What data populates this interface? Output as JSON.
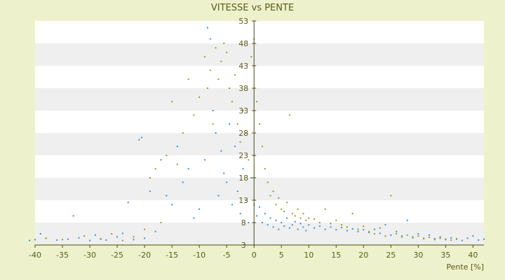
{
  "chart_data": {
    "type": "scatter",
    "title": "VITESSE vs PENTE",
    "xlabel": "Pente [%]",
    "ylabel": "",
    "xlim": [
      -40,
      42
    ],
    "ylim": [
      3,
      53
    ],
    "x_ticks": [
      -40,
      -35,
      -30,
      -25,
      -20,
      -15,
      -10,
      -5,
      0,
      5,
      10,
      15,
      20,
      25,
      30,
      35,
      40
    ],
    "y_tick_labels": [
      {
        "value": 53,
        "label": "53"
      },
      {
        "value": 48,
        "label": "48"
      },
      {
        "value": 43,
        "label": "43"
      },
      {
        "value": 38,
        "label": "38"
      },
      {
        "value": 33,
        "label": "33"
      },
      {
        "value": 28,
        "label": "28"
      },
      {
        "value": 23,
        "label": "23"
      },
      {
        "value": 18,
        "label": "18"
      },
      {
        "value": 13,
        "label": "13"
      },
      {
        "value": 8,
        "label": "8"
      },
      {
        "value": 3,
        "label": "3"
      }
    ],
    "grid": true,
    "legend": "none",
    "colors": {
      "background": "#eef2cc",
      "band_light": "#ffffff",
      "band_dark": "#efefef",
      "axis": "#4a4a12",
      "text": "#5a5a1a",
      "series_blue": "#3a8fd6",
      "series_olive": "#9a9a1c"
    },
    "series": [
      {
        "color": "#3a8fd6",
        "points": [
          [
            -41,
            4.0
          ],
          [
            -40,
            4.2
          ],
          [
            -39,
            5.5
          ],
          [
            -38,
            4.5
          ],
          [
            -36,
            4.1
          ],
          [
            -34,
            4.3
          ],
          [
            -33,
            9.5
          ],
          [
            -32,
            4.6
          ],
          [
            -30,
            4.0
          ],
          [
            -29,
            5.2
          ],
          [
            -28,
            4.4
          ],
          [
            -27,
            4.1
          ],
          [
            -25,
            4.8
          ],
          [
            -24,
            5.6
          ],
          [
            -23,
            12.5
          ],
          [
            -22,
            4.2
          ],
          [
            -21,
            26.5
          ],
          [
            -20.5,
            27.0
          ],
          [
            -20,
            4.5
          ],
          [
            -19,
            15.0
          ],
          [
            -18,
            6.0
          ],
          [
            -17,
            22.0
          ],
          [
            -16,
            14.0
          ],
          [
            -15,
            12.0
          ],
          [
            -14,
            25.0
          ],
          [
            -13,
            17.0
          ],
          [
            -12,
            20.0
          ],
          [
            -11,
            9.0
          ],
          [
            -10,
            11.0
          ],
          [
            -9,
            22.0
          ],
          [
            -8.5,
            51.5
          ],
          [
            -8,
            49.0
          ],
          [
            -7.5,
            33.0
          ],
          [
            -7,
            28.0
          ],
          [
            -6.5,
            14.0
          ],
          [
            -6,
            24.0
          ],
          [
            -5.5,
            19.0
          ],
          [
            -5,
            17.0
          ],
          [
            -4.5,
            30.0
          ],
          [
            -4,
            12.0
          ],
          [
            -3.5,
            25.0
          ],
          [
            -3,
            15.0
          ],
          [
            -2.5,
            10.0
          ],
          [
            -2,
            20.0
          ],
          [
            -1.5,
            13.0
          ],
          [
            -1,
            8.0
          ],
          [
            -0.5,
            18.0
          ],
          [
            0,
            12.0
          ],
          [
            0.5,
            9.5
          ],
          [
            1,
            11.5
          ],
          [
            1.5,
            8.0
          ],
          [
            2,
            10.0
          ],
          [
            2.5,
            7.5
          ],
          [
            3,
            9.0
          ],
          [
            3.5,
            7.0
          ],
          [
            4,
            8.5
          ],
          [
            4.5,
            6.5
          ],
          [
            5,
            8.0
          ],
          [
            5.5,
            7.2
          ],
          [
            6,
            9.0
          ],
          [
            6.5,
            6.8
          ],
          [
            7,
            7.5
          ],
          [
            7.5,
            8.2
          ],
          [
            8,
            6.5
          ],
          [
            8.5,
            7.8
          ],
          [
            9,
            7.0
          ],
          [
            9.5,
            6.2
          ],
          [
            10,
            7.5
          ],
          [
            11,
            6.8
          ],
          [
            12,
            7.2
          ],
          [
            13,
            6.5
          ],
          [
            14,
            7.0
          ],
          [
            15,
            6.4
          ],
          [
            16,
            6.9
          ],
          [
            17,
            6.2
          ],
          [
            18,
            6.6
          ],
          [
            19,
            6.0
          ],
          [
            20,
            6.4
          ],
          [
            21,
            5.8
          ],
          [
            22,
            6.5
          ],
          [
            23,
            5.6
          ],
          [
            24,
            7.5
          ],
          [
            25,
            5.2
          ],
          [
            26,
            6.0
          ],
          [
            27,
            5.0
          ],
          [
            28,
            8.5
          ],
          [
            29,
            4.8
          ],
          [
            30,
            5.5
          ],
          [
            31,
            4.5
          ],
          [
            32,
            5.2
          ],
          [
            33,
            4.4
          ],
          [
            34,
            4.8
          ],
          [
            35,
            4.2
          ],
          [
            36,
            4.6
          ],
          [
            37,
            4.3
          ],
          [
            38,
            4.0
          ],
          [
            39,
            4.5
          ],
          [
            40,
            5.0
          ],
          [
            41,
            4.1
          ],
          [
            42,
            4.3
          ]
        ]
      },
      {
        "color": "#9a9a1c",
        "points": [
          [
            -38,
            4.5
          ],
          [
            -35,
            4.2
          ],
          [
            -31,
            5.0
          ],
          [
            -28,
            4.3
          ],
          [
            -26,
            5.5
          ],
          [
            -24,
            4.0
          ],
          [
            -22,
            4.8
          ],
          [
            -20,
            6.5
          ],
          [
            -19,
            18.0
          ],
          [
            -18,
            20.0
          ],
          [
            -17,
            8.0
          ],
          [
            -16,
            23.0
          ],
          [
            -15,
            35.0
          ],
          [
            -14,
            21.0
          ],
          [
            -13,
            28.0
          ],
          [
            -12,
            40.0
          ],
          [
            -11,
            32.0
          ],
          [
            -10,
            36.0
          ],
          [
            -9,
            45.0
          ],
          [
            -8.5,
            38.0
          ],
          [
            -8,
            42.0
          ],
          [
            -7.5,
            30.0
          ],
          [
            -7,
            47.0
          ],
          [
            -6.5,
            40.0
          ],
          [
            -6,
            44.0
          ],
          [
            -5.5,
            48.0
          ],
          [
            -5,
            46.0
          ],
          [
            -4.5,
            38.0
          ],
          [
            -4,
            35.0
          ],
          [
            -3.5,
            41.0
          ],
          [
            -3,
            30.0
          ],
          [
            -2.5,
            26.0
          ],
          [
            -2,
            33.0
          ],
          [
            -1.5,
            28.0
          ],
          [
            -1,
            22.0
          ],
          [
            -0.5,
            45.0
          ],
          [
            0,
            49.0
          ],
          [
            0.5,
            35.0
          ],
          [
            1,
            30.0
          ],
          [
            1.5,
            25.0
          ],
          [
            2,
            20.0
          ],
          [
            2.5,
            17.0
          ],
          [
            3,
            14.0
          ],
          [
            3.5,
            15.0
          ],
          [
            4,
            12.0
          ],
          [
            4.5,
            13.5
          ],
          [
            5,
            11.0
          ],
          [
            5.5,
            10.5
          ],
          [
            6,
            12.5
          ],
          [
            6.5,
            32.0
          ],
          [
            7,
            10.0
          ],
          [
            7.5,
            9.5
          ],
          [
            8,
            11.0
          ],
          [
            8.5,
            9.0
          ],
          [
            9,
            10.0
          ],
          [
            9.5,
            8.5
          ],
          [
            10,
            9.0
          ],
          [
            11,
            8.8
          ],
          [
            12,
            8.0
          ],
          [
            13,
            11.0
          ],
          [
            14,
            7.8
          ],
          [
            15,
            8.5
          ],
          [
            16,
            7.5
          ],
          [
            17,
            7.0
          ],
          [
            18,
            10.0
          ],
          [
            19,
            6.5
          ],
          [
            20,
            7.2
          ],
          [
            21,
            6.0
          ],
          [
            22,
            5.5
          ],
          [
            23,
            6.8
          ],
          [
            24,
            5.0
          ],
          [
            25,
            14.0
          ],
          [
            26,
            5.5
          ],
          [
            27,
            4.8
          ],
          [
            28,
            5.2
          ],
          [
            29,
            4.6
          ],
          [
            30,
            5.0
          ],
          [
            31,
            4.4
          ],
          [
            32,
            4.7
          ],
          [
            33,
            4.2
          ],
          [
            34,
            4.5
          ],
          [
            35,
            4.3
          ],
          [
            36,
            4.1
          ],
          [
            37,
            4.4
          ]
        ]
      }
    ]
  }
}
